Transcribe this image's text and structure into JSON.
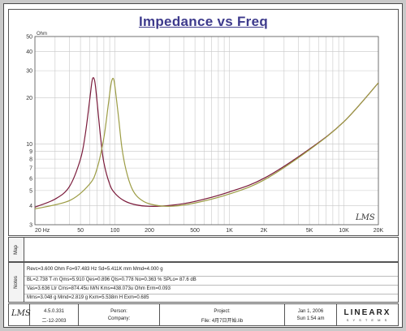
{
  "chart_data": {
    "type": "line",
    "title": "Impedance vs Freq",
    "ylabel_unit": "Ohm",
    "x_scale": "log",
    "y_scale": "log",
    "xlim": [
      20,
      20000
    ],
    "ylim": [
      3,
      50
    ],
    "x_ticks": [
      "20 Hz",
      "50",
      "100",
      "200",
      "500",
      "1K",
      "2K",
      "5K",
      "10K",
      "20K"
    ],
    "x_tick_values": [
      20,
      50,
      100,
      200,
      500,
      1000,
      2000,
      5000,
      10000,
      20000
    ],
    "y_ticks": [
      "3",
      "4",
      "5",
      "6",
      "7",
      "8",
      "9",
      "10",
      "20",
      "30",
      "40",
      "50"
    ],
    "y_tick_values": [
      3,
      4,
      5,
      6,
      7,
      8,
      9,
      10,
      20,
      30,
      40,
      50
    ],
    "grid": true,
    "series": [
      {
        "color": "#7a1a3a",
        "x": [
          20,
          30,
          40,
          50,
          55,
          60,
          63,
          65,
          67,
          70,
          75,
          80,
          90,
          100,
          120,
          150,
          200,
          300,
          500,
          1000,
          2000,
          5000,
          10000,
          20000
        ],
        "y": [
          3.9,
          4.4,
          5.3,
          8.0,
          11.5,
          19.0,
          25.5,
          27.0,
          25.0,
          18.5,
          11.0,
          7.6,
          5.5,
          4.8,
          4.3,
          4.05,
          3.95,
          4.0,
          4.25,
          4.9,
          6.0,
          9.3,
          14.0,
          25.0
        ]
      },
      {
        "color": "#9c9c44",
        "x": [
          20,
          40,
          60,
          70,
          80,
          87,
          92,
          95,
          98,
          102,
          108,
          115,
          125,
          140,
          160,
          200,
          300,
          500,
          1000,
          2000,
          5000,
          10000,
          20000
        ],
        "y": [
          3.8,
          4.3,
          5.5,
          7.0,
          11.0,
          17.5,
          24.0,
          26.5,
          26.0,
          21.0,
          14.5,
          9.5,
          6.8,
          5.2,
          4.5,
          4.1,
          3.95,
          4.15,
          4.75,
          5.85,
          9.2,
          14.0,
          25.0
        ]
      }
    ],
    "watermark": "LMS"
  },
  "sections": {
    "map_label": "Map",
    "notes_label": "Notes",
    "notes": [
      "Revc=3.600 Ohm  Fo=97.483 Hz  Sd=5.411K mm  Mmd=4.000 g",
      "BL=2.738 T·m  Qms=5.910  Qes=0.896  Qts=0.778  No=0.363 %  SPLo= 87.6 dB",
      "Vas=3.636 Ltr  Cms=874.45u M/N  Kms=438.073u Ohm  Erm=0.093",
      "Mms=3.048 g  Mmd=2.819 g  Kxm=5.538m H  Exm=0.685"
    ]
  },
  "footer": {
    "logo": "LMS",
    "version": "4.5.0.331",
    "version_date": "二-12-2003",
    "person_label": "Person:",
    "company_label": "Company:",
    "project_label": "Project:",
    "file_label": "File: 4月7日开始.lib",
    "date": "Jan 1, 2006",
    "time": "Sun 1:54 am",
    "brand": "LINEARX",
    "brand_sub": "S Y S T E M S"
  }
}
